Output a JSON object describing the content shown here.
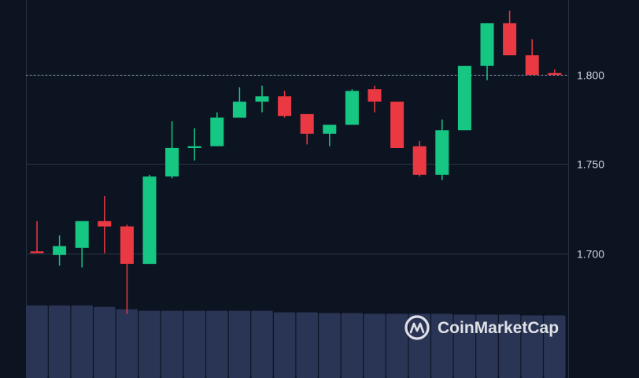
{
  "watermark": "CoinMarketCap",
  "colors": {
    "background": "#0d1421",
    "grid": "#2a3142",
    "up": "#16c784",
    "down": "#ea3943",
    "volume": "#2a3556",
    "last_price_line": "#9aa3b5"
  },
  "chart_data": {
    "type": "candlestick",
    "title": "",
    "xlabel": "",
    "ylabel": "",
    "ylim": [
      1.63,
      1.842
    ],
    "yticks": [
      1.7,
      1.75,
      1.8
    ],
    "ytick_labels": [
      "1.700",
      "1.750",
      "1.800"
    ],
    "last_price": 1.8,
    "grid": "horizontal",
    "candles": [
      {
        "o": 1.701,
        "h": 1.718,
        "l": 1.7,
        "c": 1.7
      },
      {
        "o": 1.699,
        "h": 1.71,
        "l": 1.693,
        "c": 1.704
      },
      {
        "o": 1.703,
        "h": 1.718,
        "l": 1.692,
        "c": 1.718
      },
      {
        "o": 1.718,
        "h": 1.732,
        "l": 1.7,
        "c": 1.715
      },
      {
        "o": 1.715,
        "h": 1.716,
        "l": 1.666,
        "c": 1.694
      },
      {
        "o": 1.694,
        "h": 1.744,
        "l": 1.694,
        "c": 1.743
      },
      {
        "o": 1.743,
        "h": 1.774,
        "l": 1.742,
        "c": 1.759
      },
      {
        "o": 1.759,
        "h": 1.77,
        "l": 1.752,
        "c": 1.76
      },
      {
        "o": 1.76,
        "h": 1.779,
        "l": 1.76,
        "c": 1.776
      },
      {
        "o": 1.776,
        "h": 1.793,
        "l": 1.776,
        "c": 1.785
      },
      {
        "o": 1.785,
        "h": 1.794,
        "l": 1.779,
        "c": 1.788
      },
      {
        "o": 1.788,
        "h": 1.791,
        "l": 1.776,
        "c": 1.777
      },
      {
        "o": 1.778,
        "h": 1.778,
        "l": 1.761,
        "c": 1.767
      },
      {
        "o": 1.767,
        "h": 1.772,
        "l": 1.76,
        "c": 1.772
      },
      {
        "o": 1.772,
        "h": 1.792,
        "l": 1.772,
        "c": 1.791
      },
      {
        "o": 1.792,
        "h": 1.794,
        "l": 1.779,
        "c": 1.785
      },
      {
        "o": 1.785,
        "h": 1.785,
        "l": 1.759,
        "c": 1.759
      },
      {
        "o": 1.76,
        "h": 1.763,
        "l": 1.743,
        "c": 1.744
      },
      {
        "o": 1.744,
        "h": 1.775,
        "l": 1.741,
        "c": 1.769
      },
      {
        "o": 1.769,
        "h": 1.805,
        "l": 1.769,
        "c": 1.805
      },
      {
        "o": 1.805,
        "h": 1.829,
        "l": 1.797,
        "c": 1.829
      },
      {
        "o": 1.829,
        "h": 1.836,
        "l": 1.811,
        "c": 1.811
      },
      {
        "o": 1.811,
        "h": 1.82,
        "l": 1.8,
        "c": 1.8
      },
      {
        "o": 1.801,
        "h": 1.803,
        "l": 1.8,
        "c": 1.8
      }
    ],
    "volume": [
      0.95,
      0.95,
      0.95,
      0.93,
      0.9,
      0.88,
      0.88,
      0.88,
      0.88,
      0.88,
      0.88,
      0.86,
      0.86,
      0.85,
      0.85,
      0.84,
      0.84,
      0.84,
      0.84,
      0.83,
      0.83,
      0.83,
      0.82,
      0.82
    ]
  }
}
